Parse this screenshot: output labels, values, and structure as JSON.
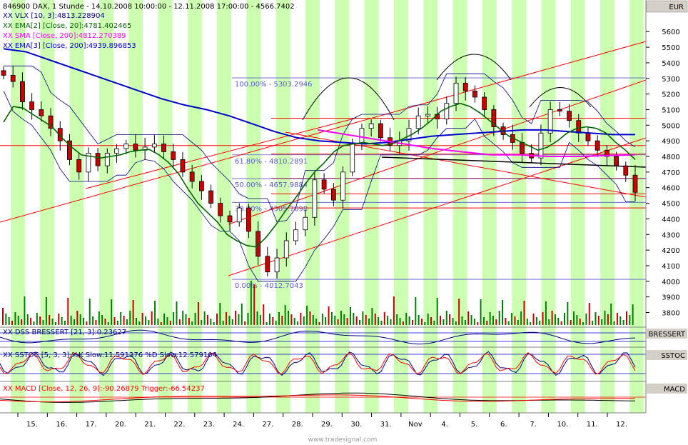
{
  "header": {
    "title": "846900 DAX, 1 Stunde - 14.10.2008 10:00:00 - 12.11.2008 17:00:00 - 4566.7402",
    "currency": "EUR"
  },
  "legend": [
    {
      "text": "XX VLX [10, 3]:4813.228904",
      "color": "#000080"
    },
    {
      "text": "XX EMA[2] [Close, 20]:4781.402465",
      "color": "#006400"
    },
    {
      "text": "XX SMA [Close, 200]:4812.270389",
      "color": "#ff00ff"
    },
    {
      "text": "XX EMA[3] [Close, 200]:4939.896853",
      "color": "#0000cd"
    }
  ],
  "panes": {
    "dss": {
      "label": "XX DSS BRESSERT [21, 3]:0.23627",
      "axis_label": "BRESSERT"
    },
    "sstoc": {
      "label": "XX SSTOC [5, 3, 3] %K Slow:11.591376 %D Slow:12.579104",
      "axis_label": "SSTOC"
    },
    "macd": {
      "label": "XX MACD [Close, 12, 26, 9]:-90.26879 Trigger:-66.54237",
      "axis_label": "MACD"
    }
  },
  "watermark": "www.tradesignal.com",
  "colors": {
    "stripe": "#ccffb0",
    "candle_up": "#ffffff",
    "candle_down": "#cc0000",
    "volume_up": "#008000",
    "volume_down": "#cc0000",
    "channel": "#ff0000",
    "fib": "#5a5acd",
    "ema20": "#006400",
    "sma200": "#ff00ff",
    "ema200": "#0000cd",
    "vlx": "#000080"
  },
  "chart_data": {
    "type": "candlestick",
    "ylim": [
      3720,
      5720
    ],
    "y_ticks": [
      3800,
      3900,
      4000,
      4100,
      4200,
      4300,
      4400,
      4500,
      4600,
      4700,
      4800,
      4900,
      5000,
      5100,
      5200,
      5300,
      5400,
      5500,
      5600
    ],
    "x_labels": [
      "15.",
      "16.",
      "17.",
      "20.",
      "21.",
      "22.",
      "23.",
      "24.",
      "27.",
      "28.",
      "29.",
      "30.",
      "31.",
      "Nov",
      "4.",
      "5.",
      "6.",
      "7.",
      "10.",
      "11.",
      "12."
    ],
    "fibonacci": [
      {
        "label": "100.00% - 5303.2946",
        "value": 5303.29
      },
      {
        "label": "61.80% - 4810.2891",
        "value": 4810.29
      },
      {
        "label": "50.00% - 4657.9884",
        "value": 4657.99
      },
      {
        "label": "38.20% - 4505.7098",
        "value": 4505.71
      },
      {
        "label": "0.00% - 4012.7043",
        "value": 4012.7
      }
    ],
    "horizontal_levels": [
      5045,
      4870,
      4815,
      4660,
      4560,
      4470
    ],
    "series": [
      {
        "name": "Close (approx.)",
        "values": [
          5320,
          5280,
          5150,
          5100,
          5060,
          4980,
          4900,
          4780,
          4700,
          4820,
          4740,
          4820,
          4850,
          4880,
          4840,
          4860,
          4880,
          4830,
          4780,
          4700,
          4640,
          4580,
          4500,
          4420,
          4380,
          4470,
          4320,
          4160,
          4060,
          4150,
          4260,
          4330,
          4410,
          4650,
          4590,
          4520,
          4700,
          4880,
          4980,
          5010,
          4920,
          4870,
          4900,
          4980,
          5060,
          5070,
          5040,
          5140,
          5270,
          5220,
          5180,
          5100,
          4990,
          4940,
          4890,
          4820,
          4790,
          4950,
          5100,
          5090,
          5030,
          4950,
          4900,
          4840,
          4800,
          4740,
          4680,
          4570
        ]
      },
      {
        "name": "EMA 20",
        "values": [
          5020,
          5120,
          5110,
          5070,
          5030,
          4990,
          4920,
          4860,
          4810,
          4800,
          4790,
          4800,
          4810,
          4830,
          4840,
          4845,
          4810,
          4760,
          4690,
          4590,
          4500,
          4440,
          4380,
          4300,
          4260,
          4230,
          4220,
          4280,
          4360,
          4450,
          4530,
          4620,
          4700,
          4760,
          4830,
          4870,
          4880,
          4890,
          4880,
          4870,
          4880,
          4910,
          4940,
          4980,
          5030,
          5090,
          5120,
          5140,
          5120,
          5080,
          5030,
          4980,
          4930,
          4900,
          4870,
          4840,
          4860,
          4900,
          4950,
          4980,
          4990,
          4980,
          4950,
          4890,
          4840,
          4780
        ]
      },
      {
        "name": "EMA 200",
        "values": [
          5490,
          5470,
          5420,
          5370,
          5320,
          5270,
          5220,
          5170,
          5130,
          5100,
          5060,
          5010,
          4960,
          4920,
          4900,
          4890,
          4880,
          4890,
          4910,
          4930,
          4940,
          4950,
          4960,
          4970,
          4970,
          4960,
          4950,
          4940,
          4940
        ]
      },
      {
        "name": "SMA 200",
        "values": [
          4970,
          4940,
          4910,
          4880,
          4850,
          4830,
          4810,
          4810,
          4800,
          4800,
          4805,
          4810
        ]
      }
    ]
  }
}
